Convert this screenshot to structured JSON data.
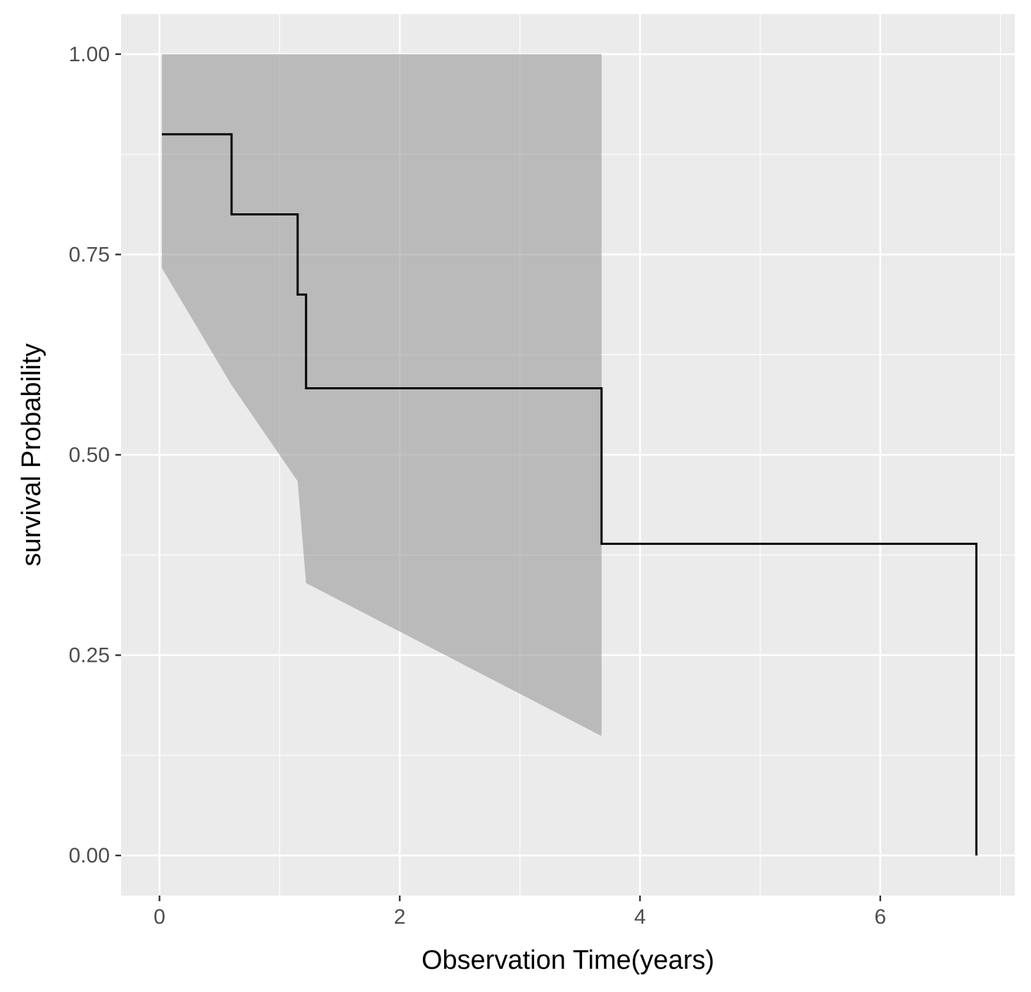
{
  "chart_data": {
    "type": "line",
    "title": "",
    "xlabel": "Observation Time(years)",
    "ylabel": "survival Probability",
    "xlim": [
      -0.32,
      7.12
    ],
    "ylim": [
      -0.05,
      1.05
    ],
    "x_ticks": [
      0,
      2,
      4,
      6
    ],
    "x_tick_labels": [
      "0",
      "2",
      "4",
      "6"
    ],
    "y_ticks": [
      0,
      0.25,
      0.5,
      0.75,
      1
    ],
    "y_tick_labels": [
      "0.00",
      "0.25",
      "0.50",
      "0.75",
      "1.00"
    ],
    "grid": true,
    "legend": "none",
    "series": [
      {
        "kind": "step",
        "x": [
          0.02,
          0.6,
          1.15,
          1.22,
          3.68,
          6.8
        ],
        "y": [
          0.9,
          0.8,
          0.7,
          0.583,
          0.389,
          0.0
        ]
      }
    ],
    "confidence_band": {
      "upper_x": [
        0.02,
        3.68
      ],
      "upper_y": [
        1.0,
        1.0
      ],
      "lower_x": [
        0.02,
        0.6,
        1.15,
        1.22,
        3.68
      ],
      "lower_y": [
        0.733,
        0.587,
        0.467,
        0.34,
        0.149
      ]
    },
    "colors": {
      "panel": "#ebebeb",
      "grid_major": "#ffffff",
      "grid_minor": "#f5f5f5",
      "band": "#999999",
      "line": "#000000"
    }
  }
}
